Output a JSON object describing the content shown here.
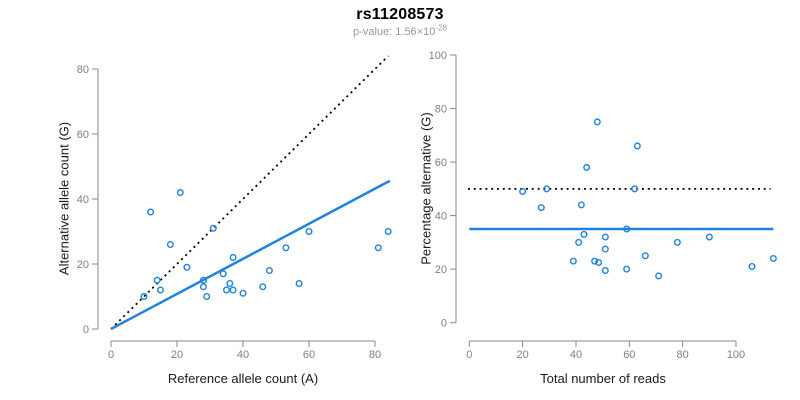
{
  "header": {
    "title": "rs11208573",
    "subtitle_prefix": "p-value: 1.56×10",
    "subtitle_exponent": "-28"
  },
  "colors": {
    "point_blue": "#1f83dd",
    "line_blue": "#1f83dd",
    "dotted_black": "#000000",
    "axis_gray": "#888888",
    "tick_label_gray": "#808080",
    "title_black": "#000000",
    "subtitle_gray": "#9a9a9a"
  },
  "chart_data": [
    {
      "type": "scatter",
      "panel": "left",
      "xlabel": "Reference allele count (A)",
      "ylabel": "Alternative allele count (G)",
      "xlim": [
        0,
        85
      ],
      "ylim": [
        0,
        85
      ],
      "xticks": [
        0,
        20,
        40,
        60,
        80
      ],
      "yticks": [
        0,
        20,
        40,
        60,
        80
      ],
      "grid": false,
      "legend": "none",
      "points": [
        [
          21,
          42
        ],
        [
          12,
          36
        ],
        [
          31,
          31
        ],
        [
          18,
          26
        ],
        [
          23,
          19
        ],
        [
          37,
          22
        ],
        [
          60,
          30
        ],
        [
          53,
          25
        ],
        [
          84,
          30
        ],
        [
          81,
          25
        ],
        [
          48,
          18
        ],
        [
          34,
          17
        ],
        [
          28,
          15
        ],
        [
          14,
          15
        ],
        [
          15,
          12
        ],
        [
          10,
          10
        ],
        [
          28,
          13
        ],
        [
          29,
          10
        ],
        [
          35,
          12
        ],
        [
          37,
          12
        ],
        [
          36,
          14
        ],
        [
          40,
          11
        ],
        [
          46,
          13
        ],
        [
          57,
          14
        ]
      ],
      "lines": [
        {
          "id": "identity",
          "meaning": "y = x identity line",
          "style": "dotted",
          "color": "#000000",
          "x1": 0,
          "y1": 0,
          "x2": 84,
          "y2": 84
        },
        {
          "id": "fit",
          "meaning": "fitted allelic ratio, slope 0.54",
          "style": "solid",
          "color": "#1f83dd",
          "x1": 0,
          "y1": 0,
          "x2": 84.5,
          "y2": 45.6
        }
      ]
    },
    {
      "type": "scatter",
      "panel": "right",
      "xlabel": "Total number of reads",
      "ylabel": "Percentage alternative (G)",
      "xlim": [
        0,
        115
      ],
      "ylim": [
        0,
        100
      ],
      "xticks": [
        0,
        20,
        40,
        60,
        80,
        100
      ],
      "yticks": [
        0,
        20,
        40,
        60,
        80,
        100
      ],
      "grid": false,
      "legend": "none",
      "points": [
        [
          63,
          66
        ],
        [
          48,
          75
        ],
        [
          62,
          50
        ],
        [
          44,
          58
        ],
        [
          42,
          44
        ],
        [
          59,
          35
        ],
        [
          90,
          32
        ],
        [
          78,
          30
        ],
        [
          114,
          24
        ],
        [
          106,
          21
        ],
        [
          66,
          25
        ],
        [
          51,
          32
        ],
        [
          43,
          33
        ],
        [
          29,
          50
        ],
        [
          27,
          43
        ],
        [
          20,
          49
        ],
        [
          41,
          30
        ],
        [
          39,
          23
        ],
        [
          47,
          23
        ],
        [
          48.5,
          22.5
        ],
        [
          51,
          27.5
        ],
        [
          51,
          19.5
        ],
        [
          59,
          20
        ],
        [
          71,
          17.5
        ]
      ],
      "lines": [
        {
          "id": "expected",
          "meaning": "expected 50% line",
          "style": "dotted",
          "color": "#000000",
          "x1": -0.5,
          "y1": 50,
          "x2": 113,
          "y2": 50
        },
        {
          "id": "mean",
          "meaning": "observed mean percentage ~35%",
          "style": "solid",
          "color": "#1f83dd",
          "x1": 0,
          "y1": 35,
          "x2": 114,
          "y2": 35
        }
      ]
    }
  ]
}
